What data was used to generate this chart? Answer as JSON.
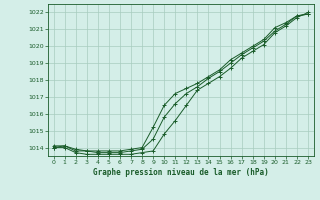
{
  "title": "Graphe pression niveau de la mer (hPa)",
  "background_color": "#d4eee8",
  "grid_color": "#a8ccbf",
  "line_color": "#1a5c2a",
  "xlim": [
    -0.5,
    23.5
  ],
  "ylim": [
    1013.5,
    1022.5
  ],
  "yticks": [
    1014,
    1015,
    1016,
    1017,
    1018,
    1019,
    1020,
    1021,
    1022
  ],
  "xticks": [
    0,
    1,
    2,
    3,
    4,
    5,
    6,
    7,
    8,
    9,
    10,
    11,
    12,
    13,
    14,
    15,
    16,
    17,
    18,
    19,
    20,
    21,
    22,
    23
  ],
  "series1": {
    "x": [
      0,
      1,
      2,
      3,
      4,
      5,
      6,
      7,
      8,
      9,
      10,
      11,
      12,
      13,
      14,
      15,
      16,
      17,
      18,
      19,
      20,
      21,
      22,
      23
    ],
    "y": [
      1014.1,
      1014.1,
      1013.9,
      1013.8,
      1013.8,
      1013.8,
      1013.8,
      1013.9,
      1014.0,
      1015.2,
      1016.5,
      1017.2,
      1017.5,
      1017.8,
      1018.2,
      1018.6,
      1019.2,
      1019.6,
      1020.0,
      1020.4,
      1021.1,
      1021.4,
      1021.8,
      1021.9
    ]
  },
  "series2": {
    "x": [
      0,
      1,
      2,
      3,
      4,
      5,
      6,
      7,
      8,
      9,
      10,
      11,
      12,
      13,
      14,
      15,
      16,
      17,
      18,
      19,
      20,
      21,
      22,
      23
    ],
    "y": [
      1014.0,
      1014.1,
      1013.8,
      1013.8,
      1013.7,
      1013.7,
      1013.7,
      1013.8,
      1013.9,
      1014.5,
      1015.8,
      1016.6,
      1017.2,
      1017.6,
      1018.1,
      1018.5,
      1019.0,
      1019.5,
      1019.9,
      1020.3,
      1020.9,
      1021.3,
      1021.8,
      1021.9
    ]
  },
  "series3": {
    "x": [
      0,
      1,
      2,
      3,
      4,
      5,
      6,
      7,
      8,
      9,
      10,
      11,
      12,
      13,
      14,
      15,
      16,
      17,
      18,
      19,
      20,
      21,
      22,
      23
    ],
    "y": [
      1014.0,
      1014.0,
      1013.7,
      1013.6,
      1013.6,
      1013.6,
      1013.6,
      1013.6,
      1013.7,
      1013.8,
      1014.8,
      1015.6,
      1016.5,
      1017.4,
      1017.8,
      1018.2,
      1018.7,
      1019.3,
      1019.7,
      1020.1,
      1020.8,
      1021.2,
      1021.7,
      1022.0
    ]
  }
}
